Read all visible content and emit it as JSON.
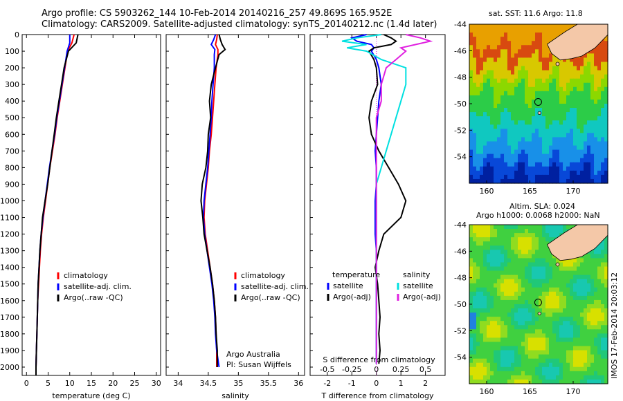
{
  "header": {
    "line1": "Argo profile: CS 5903262_144 10-Feb-2014 20140216_257 49.869S 165.952E",
    "line2": "Climatology: CARS2009. Satellite-adjusted climatology: synTS_20140212.nc (1.4d later)"
  },
  "map_titles": {
    "sst": "sat. SST: 11.6 Argo: 11.8",
    "sla1": "Altim. SLA: 0.024",
    "sla2": "Argo h1000: 0.0068 h2000: NaN"
  },
  "credit": {
    "org": "Argo Australia",
    "pi": "PI: Susan Wijffels"
  },
  "side_label": "IMOS 17-Feb-2014 20:03:12",
  "colors": {
    "climatology": "#ff0000",
    "satellite": "#0000ff",
    "argo": "#000000",
    "sal_sat": "#00e0e0",
    "sal_argo": "#e020e0"
  },
  "chart_data": [
    {
      "type": "line",
      "id": "temperature",
      "xlabel": "temperature (deg C)",
      "ylim": [
        2050,
        0
      ],
      "xlim": [
        -1,
        31
      ],
      "xticks": [
        0,
        5,
        10,
        15,
        20,
        25,
        30
      ],
      "yticks": [
        0,
        100,
        200,
        300,
        400,
        500,
        600,
        700,
        800,
        900,
        1000,
        1100,
        1200,
        1300,
        1400,
        1500,
        1600,
        1700,
        1800,
        1900,
        2000
      ],
      "legend": [
        "climatology",
        "satellite-adj. clim.",
        "Argo(..raw -QC)"
      ],
      "depth": [
        0,
        50,
        100,
        200,
        300,
        400,
        500,
        600,
        700,
        800,
        900,
        1000,
        1100,
        1200,
        1300,
        1400,
        1500,
        1600,
        1700,
        1800,
        1900,
        2000,
        2050
      ],
      "series": [
        {
          "name": "climatology",
          "values": [
            11,
            10.5,
            9.5,
            8.9,
            8.3,
            7.7,
            7.1,
            6.6,
            6.0,
            5.4,
            4.9,
            4.4,
            3.9,
            3.5,
            3.2,
            3.0,
            2.8,
            2.6,
            2.5,
            2.4,
            2.3,
            2.2,
            2.2
          ]
        },
        {
          "name": "satellite-adj. clim.",
          "values": [
            10,
            10.0,
            9.4,
            8.8,
            8.2,
            7.6,
            7.0,
            6.5,
            5.9,
            5.3,
            4.8,
            4.3,
            3.8,
            3.4,
            3.1,
            2.9,
            2.7,
            2.6,
            2.5,
            2.4,
            2.3,
            2.2,
            2.2
          ]
        },
        {
          "name": "Argo(..raw -QC)",
          "values": [
            11.9,
            11.5,
            9.7,
            8.7,
            8.1,
            7.5,
            6.9,
            6.4,
            5.9,
            5.4,
            4.9,
            4.3,
            3.7,
            3.4,
            3.1,
            2.9,
            2.7,
            2.6,
            2.5,
            2.4,
            2.3,
            2.2,
            2.2
          ]
        }
      ]
    },
    {
      "type": "line",
      "id": "salinity",
      "xlabel": "salinity",
      "ylim": [
        2050,
        0
      ],
      "xlim": [
        33.8,
        36.1
      ],
      "xticks": [
        34,
        34.5,
        35,
        35.5,
        36
      ],
      "legend": [
        "climatology",
        "satellite-adj. clim.",
        "Argo(..raw -QC)"
      ],
      "depth": [
        0,
        30,
        60,
        90,
        120,
        200,
        300,
        400,
        500,
        600,
        700,
        800,
        900,
        1000,
        1100,
        1200,
        1300,
        1400,
        1500,
        1600,
        1700,
        1800,
        1900,
        2000
      ],
      "series": [
        {
          "name": "climatology",
          "values": [
            34.65,
            34.64,
            34.62,
            34.66,
            34.66,
            34.63,
            34.61,
            34.59,
            34.57,
            34.55,
            34.52,
            34.5,
            34.47,
            34.44,
            34.43,
            34.45,
            34.49,
            34.53,
            34.57,
            34.6,
            34.62,
            34.63,
            34.64,
            34.64
          ]
        },
        {
          "name": "satellite-adj. clim.",
          "values": [
            34.62,
            34.59,
            34.55,
            34.61,
            34.6,
            34.6,
            34.58,
            34.56,
            34.55,
            34.53,
            34.51,
            34.49,
            34.46,
            34.43,
            34.42,
            34.44,
            34.48,
            34.52,
            34.56,
            34.59,
            34.61,
            34.62,
            34.64,
            34.68
          ]
        },
        {
          "name": "Argo(..raw -QC)",
          "values": [
            34.68,
            34.7,
            34.73,
            34.78,
            34.68,
            34.62,
            34.55,
            34.52,
            34.54,
            34.5,
            34.49,
            34.46,
            34.4,
            34.38,
            34.41,
            34.43,
            34.48,
            34.53,
            34.57,
            34.6,
            34.62,
            34.63,
            34.65,
            34.65
          ]
        }
      ]
    },
    {
      "type": "line",
      "id": "differences",
      "xlabel": "T difference from climatology",
      "x2label": "S difference from climatology",
      "ylim": [
        2050,
        0
      ],
      "xlim": [
        -2.7,
        2.8
      ],
      "xticks": [
        -2,
        -1,
        0,
        1,
        2
      ],
      "x2ticks": [
        -0.5,
        -0.25,
        0,
        0.25,
        0.5
      ],
      "legend_title_t": "temperature",
      "legend_title_s": "salinity",
      "legend_t": [
        "satellite",
        "Argo(-adj)"
      ],
      "legend_s": [
        "satellite",
        "Argo(-adj)"
      ],
      "depth": [
        0,
        20,
        40,
        60,
        80,
        100,
        150,
        200,
        300,
        400,
        500,
        600,
        700,
        800,
        900,
        1000,
        1100,
        1200,
        1300,
        1400,
        1500,
        1600,
        1700,
        1800,
        1900,
        1980
      ],
      "series": [
        {
          "name": "T satellite",
          "values": [
            -0.4,
            -1.0,
            -0.8,
            -0.2,
            -0.1,
            -0.2,
            0.0,
            0.1,
            0.2,
            0.1,
            0.05,
            0.0,
            -0.05,
            0.0,
            0.0,
            -0.05,
            -0.05,
            -0.05,
            0.0,
            0.0,
            0.0,
            0.0,
            0.0,
            0.0,
            0.0,
            0.0
          ]
        },
        {
          "name": "T Argo(-adj)",
          "values": [
            0.3,
            0.6,
            0.8,
            0.6,
            -0.1,
            -0.3,
            -0.1,
            0.0,
            0.05,
            -0.2,
            -0.3,
            -0.2,
            0.1,
            0.5,
            0.9,
            1.2,
            1.0,
            0.3,
            0.1,
            -0.05,
            0.05,
            0.1,
            0.15,
            0.1,
            0.15,
            0.1
          ]
        },
        {
          "name": "S satellite",
          "values": [
            0.05,
            -0.2,
            -0.35,
            -0.1,
            -0.3,
            -0.1,
            0.05,
            0.3,
            0.3,
            0.25,
            0.2,
            0.15,
            0.1,
            0.05,
            0.0,
            0.0,
            0.0,
            0.0,
            0.0,
            0.0,
            0.0,
            0.0,
            0.0,
            0.0,
            0.0,
            0.0
          ]
        },
        {
          "name": "S Argo(-adj)",
          "values": [
            0.3,
            0.45,
            0.55,
            0.4,
            0.25,
            0.3,
            0.2,
            0.1,
            0.05,
            0.05,
            0.0,
            0.0,
            0.0,
            0.0,
            0.0,
            0.0,
            0.0,
            0.0,
            0.0,
            0.0,
            0.0,
            0.0,
            0.0,
            0.0,
            0.0,
            0.0
          ]
        }
      ]
    },
    {
      "type": "heatmap",
      "id": "sst_map",
      "xlim": [
        158,
        174
      ],
      "ylim": [
        -56,
        -44
      ],
      "xticks": [
        160,
        165,
        170
      ],
      "yticks": [
        -44,
        -46,
        -48,
        -50,
        -52,
        -54
      ],
      "argo_position": [
        165.952,
        -49.869
      ]
    },
    {
      "type": "heatmap",
      "id": "sla_map",
      "xlim": [
        158,
        174
      ],
      "ylim": [
        -56,
        -44
      ],
      "xticks": [
        160,
        165,
        170
      ],
      "yticks": [
        -44,
        -46,
        -48,
        -50,
        -52,
        -54
      ],
      "argo_position": [
        165.952,
        -49.869
      ]
    }
  ]
}
